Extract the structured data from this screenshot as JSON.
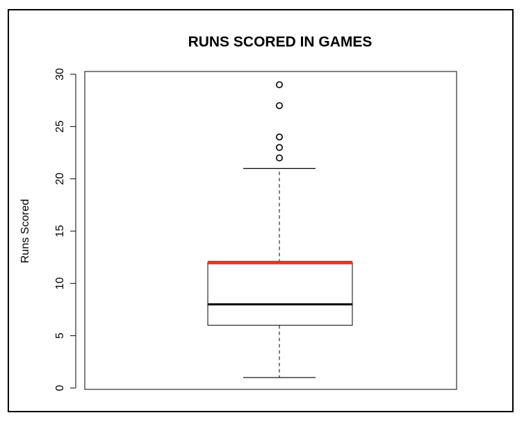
{
  "chart_data": {
    "type": "boxplot",
    "title": "RUNS SCORED IN GAMES",
    "ylabel": "Runs Scored",
    "xlabel": "",
    "ylim": [
      0,
      30
    ],
    "y_ticks": [
      0,
      5,
      10,
      15,
      20,
      25,
      30
    ],
    "box": {
      "whisker_low": 1,
      "q1": 6,
      "median": 8,
      "q3": 12,
      "whisker_high": 21,
      "outliers": [
        22,
        23,
        24,
        27,
        29
      ]
    },
    "colors": {
      "box": "#000000",
      "median": "#000000",
      "q3_highlight": "#e8302a",
      "outlier": "#000000"
    }
  }
}
